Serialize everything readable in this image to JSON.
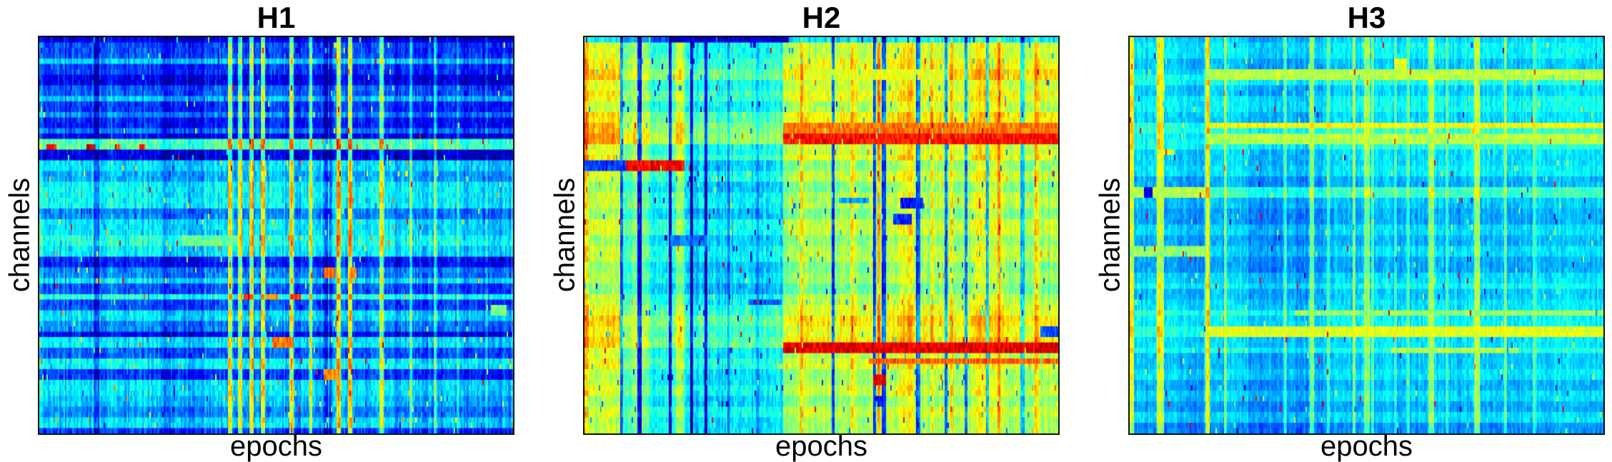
{
  "figure": {
    "background": "#ffffff",
    "axis_box_color": "#111111",
    "text_color": "#000000"
  },
  "chart_data": [
    {
      "type": "heatmap",
      "title": "H1",
      "xlabel": "epochs",
      "ylabel": "channels",
      "colormap": "jet",
      "value_range": [
        0,
        1
      ],
      "apparent_rows": 74,
      "apparent_cols": 331,
      "base": 0.24,
      "row_bands": [
        [
          0.0,
          0.02,
          0.1
        ],
        [
          0.02,
          0.048,
          0.2
        ],
        [
          0.048,
          0.062,
          0.33
        ],
        [
          0.062,
          0.092,
          0.18
        ],
        [
          0.092,
          0.118,
          0.11
        ],
        [
          0.118,
          0.148,
          0.22
        ],
        [
          0.148,
          0.168,
          0.32
        ],
        [
          0.168,
          0.185,
          0.18
        ],
        [
          0.185,
          0.205,
          0.26
        ],
        [
          0.205,
          0.228,
          0.15
        ],
        [
          0.228,
          0.248,
          0.24
        ],
        [
          0.248,
          0.263,
          0.12
        ],
        [
          0.263,
          0.288,
          0.46
        ],
        [
          0.288,
          0.308,
          0.1
        ],
        [
          0.308,
          0.335,
          0.35
        ],
        [
          0.335,
          0.362,
          0.3
        ],
        [
          0.362,
          0.43,
          0.38
        ],
        [
          0.43,
          0.458,
          0.26
        ],
        [
          0.458,
          0.5,
          0.36
        ],
        [
          0.5,
          0.522,
          0.41
        ],
        [
          0.522,
          0.556,
          0.36
        ],
        [
          0.556,
          0.582,
          0.15
        ],
        [
          0.582,
          0.602,
          0.26
        ],
        [
          0.602,
          0.618,
          0.36
        ],
        [
          0.618,
          0.642,
          0.21
        ],
        [
          0.642,
          0.665,
          0.41
        ],
        [
          0.665,
          0.69,
          0.2
        ],
        [
          0.69,
          0.716,
          0.35
        ],
        [
          0.716,
          0.742,
          0.26
        ],
        [
          0.742,
          0.762,
          0.12
        ],
        [
          0.762,
          0.788,
          0.36
        ],
        [
          0.788,
          0.812,
          0.22
        ],
        [
          0.812,
          0.836,
          0.38
        ],
        [
          0.836,
          0.86,
          0.18
        ],
        [
          0.86,
          0.9,
          0.36
        ],
        [
          0.9,
          0.932,
          0.32
        ],
        [
          0.932,
          0.962,
          0.26
        ],
        [
          0.962,
          0.982,
          0.35
        ],
        [
          0.982,
          1.0,
          0.18
        ]
      ],
      "col_stripes": [
        [
          0.0,
          0.008,
          0.05
        ],
        [
          0.115,
          0.127,
          -0.12
        ],
        [
          0.15,
          0.158,
          0.05
        ],
        [
          0.26,
          0.276,
          -0.09
        ],
        [
          0.28,
          0.345,
          -0.03
        ],
        [
          0.398,
          0.406,
          0.33
        ],
        [
          0.42,
          0.428,
          0.28
        ],
        [
          0.443,
          0.451,
          0.34
        ],
        [
          0.468,
          0.475,
          0.3
        ],
        [
          0.52,
          0.56,
          -0.04
        ],
        [
          0.528,
          0.535,
          0.37
        ],
        [
          0.568,
          0.575,
          0.32
        ],
        [
          0.598,
          0.607,
          -0.16
        ],
        [
          0.61,
          0.618,
          -0.14
        ],
        [
          0.628,
          0.636,
          0.37
        ],
        [
          0.652,
          0.659,
          0.33
        ],
        [
          0.718,
          0.725,
          0.31
        ],
        [
          0.745,
          0.995,
          -0.04
        ],
        [
          0.78,
          0.787,
          0.22
        ],
        [
          0.83,
          0.837,
          0.18
        ],
        [
          0.88,
          0.887,
          0.15
        ],
        [
          0.94,
          0.947,
          0.12
        ]
      ],
      "streaks": [
        [
          0.266,
          0.288,
          0.015,
          0.035,
          0.85
        ],
        [
          0.266,
          0.288,
          0.1,
          0.118,
          0.9
        ],
        [
          0.266,
          0.288,
          0.16,
          0.172,
          0.78
        ],
        [
          0.266,
          0.288,
          0.21,
          0.222,
          0.86
        ],
        [
          0.5,
          0.522,
          0.3,
          0.42,
          0.47
        ],
        [
          0.586,
          0.608,
          0.6,
          0.622,
          0.76
        ],
        [
          0.586,
          0.608,
          0.655,
          0.67,
          0.72
        ],
        [
          0.644,
          0.665,
          0.43,
          0.452,
          0.78
        ],
        [
          0.644,
          0.665,
          0.48,
          0.5,
          0.72
        ],
        [
          0.644,
          0.665,
          0.53,
          0.55,
          0.8
        ],
        [
          0.68,
          0.7,
          0.952,
          0.985,
          0.5
        ],
        [
          0.755,
          0.785,
          0.49,
          0.535,
          0.76
        ],
        [
          0.84,
          0.87,
          0.6,
          0.632,
          0.74
        ]
      ],
      "texture": {
        "col_jitter": 0.1,
        "cell_jitter": 0.11,
        "dark_rate": 0.004,
        "dark_delta": -0.14,
        "hot_rate": 0.007,
        "hot_delta": 0.34,
        "red_rate": 0.0012,
        "streak_jitter": 0.12
      }
    },
    {
      "type": "heatmap",
      "title": "H2",
      "xlabel": "epochs",
      "ylabel": "channels",
      "colormap": "jet",
      "value_range": [
        0,
        1
      ],
      "apparent_rows": 74,
      "apparent_cols": 331,
      "base": 0.42,
      "row_bands": [
        [
          0.0,
          0.016,
          0.22
        ],
        [
          0.016,
          0.06,
          0.44
        ],
        [
          0.06,
          0.085,
          0.48
        ],
        [
          0.085,
          0.105,
          0.53
        ],
        [
          0.105,
          0.132,
          0.44
        ],
        [
          0.132,
          0.162,
          0.48
        ],
        [
          0.162,
          0.192,
          0.42
        ],
        [
          0.192,
          0.215,
          0.5
        ],
        [
          0.215,
          0.24,
          0.55
        ],
        [
          0.24,
          0.265,
          0.58
        ],
        [
          0.265,
          0.292,
          0.44
        ],
        [
          0.292,
          0.315,
          0.48
        ],
        [
          0.315,
          0.34,
          0.38
        ],
        [
          0.34,
          0.368,
          0.44
        ],
        [
          0.368,
          0.395,
          0.37
        ],
        [
          0.395,
          0.432,
          0.42
        ],
        [
          0.432,
          0.465,
          0.37
        ],
        [
          0.465,
          0.498,
          0.44
        ],
        [
          0.498,
          0.532,
          0.38
        ],
        [
          0.532,
          0.562,
          0.42
        ],
        [
          0.562,
          0.592,
          0.37
        ],
        [
          0.592,
          0.622,
          0.4
        ],
        [
          0.622,
          0.652,
          0.35
        ],
        [
          0.652,
          0.682,
          0.42
        ],
        [
          0.682,
          0.706,
          0.46
        ],
        [
          0.706,
          0.732,
          0.52
        ],
        [
          0.732,
          0.756,
          0.48
        ],
        [
          0.756,
          0.78,
          0.52
        ],
        [
          0.78,
          0.812,
          0.42
        ],
        [
          0.812,
          0.842,
          0.46
        ],
        [
          0.842,
          0.872,
          0.4
        ],
        [
          0.872,
          0.902,
          0.44
        ],
        [
          0.902,
          0.932,
          0.38
        ],
        [
          0.932,
          0.966,
          0.44
        ],
        [
          0.966,
          1.0,
          0.4
        ]
      ],
      "col_stripes": [
        [
          0.0,
          0.01,
          0.26
        ],
        [
          0.01,
          0.08,
          0.16
        ],
        [
          0.08,
          0.14,
          0.06
        ],
        [
          0.074,
          0.08,
          -0.34
        ],
        [
          0.112,
          0.119,
          -0.34
        ],
        [
          0.14,
          0.23,
          -0.02
        ],
        [
          0.178,
          0.184,
          -0.32
        ],
        [
          0.192,
          0.212,
          0.12
        ],
        [
          0.223,
          0.23,
          -0.34
        ],
        [
          0.253,
          0.26,
          -0.3
        ],
        [
          0.23,
          0.418,
          -0.06
        ],
        [
          0.3,
          0.306,
          -0.1
        ],
        [
          0.36,
          0.366,
          -0.08
        ],
        [
          0.418,
          1.0,
          0.13
        ],
        [
          0.455,
          0.462,
          0.12
        ],
        [
          0.52,
          0.527,
          -0.38
        ],
        [
          0.56,
          0.567,
          0.12
        ],
        [
          0.608,
          0.615,
          -0.36
        ],
        [
          0.616,
          0.623,
          0.14
        ],
        [
          0.628,
          0.635,
          -0.36
        ],
        [
          0.66,
          0.695,
          0.08
        ],
        [
          0.7,
          0.708,
          -0.34
        ],
        [
          0.728,
          0.735,
          0.12
        ],
        [
          0.758,
          0.764,
          -0.32
        ],
        [
          0.77,
          0.777,
          0.1
        ],
        [
          0.8,
          0.807,
          -0.28
        ],
        [
          0.825,
          0.885,
          0.06
        ],
        [
          0.845,
          0.852,
          -0.28
        ],
        [
          0.87,
          0.877,
          0.1
        ],
        [
          0.92,
          0.927,
          -0.26
        ],
        [
          0.95,
          0.957,
          0.1
        ]
      ],
      "streaks": [
        [
          0.0,
          0.016,
          0.18,
          0.43,
          0.08
        ],
        [
          0.085,
          0.105,
          0.46,
          0.76,
          0.6
        ],
        [
          0.212,
          0.238,
          0.418,
          1.0,
          0.76
        ],
        [
          0.248,
          0.275,
          0.418,
          1.0,
          0.86
        ],
        [
          0.315,
          0.337,
          0.088,
          0.21,
          0.88
        ],
        [
          0.315,
          0.337,
          0.0,
          0.088,
          0.18
        ],
        [
          0.4,
          0.415,
          0.535,
          0.6,
          0.28
        ],
        [
          0.408,
          0.432,
          0.665,
          0.715,
          0.15
        ],
        [
          0.452,
          0.47,
          0.65,
          0.69,
          0.16
        ],
        [
          0.495,
          0.525,
          0.18,
          0.26,
          0.24
        ],
        [
          0.66,
          0.68,
          0.345,
          0.415,
          0.2
        ],
        [
          0.73,
          0.755,
          0.96,
          1.0,
          0.2
        ],
        [
          0.765,
          0.792,
          0.418,
          1.0,
          0.9
        ],
        [
          0.805,
          0.828,
          0.6,
          1.0,
          0.78
        ],
        [
          0.855,
          0.878,
          0.608,
          0.636,
          0.9
        ],
        [
          0.905,
          0.93,
          0.608,
          0.63,
          0.14
        ]
      ],
      "texture": {
        "col_jitter": 0.09,
        "cell_jitter": 0.1,
        "dark_rate": 0.012,
        "dark_delta": -0.3,
        "hot_rate": 0.005,
        "hot_delta": 0.2,
        "red_rate": 0.001,
        "streak_jitter": 0.12
      }
    },
    {
      "type": "heatmap",
      "title": "H3",
      "xlabel": "epochs",
      "ylabel": "channels",
      "colormap": "jet",
      "value_range": [
        0,
        1
      ],
      "apparent_rows": 74,
      "apparent_cols": 331,
      "base": 0.34,
      "row_bands": [
        [
          0.0,
          0.02,
          0.34
        ],
        [
          0.02,
          0.052,
          0.37
        ],
        [
          0.052,
          0.078,
          0.32
        ],
        [
          0.078,
          0.095,
          0.35
        ],
        [
          0.095,
          0.115,
          0.4
        ],
        [
          0.115,
          0.152,
          0.33
        ],
        [
          0.152,
          0.188,
          0.38
        ],
        [
          0.188,
          0.218,
          0.34
        ],
        [
          0.218,
          0.242,
          0.42
        ],
        [
          0.242,
          0.263,
          0.37
        ],
        [
          0.263,
          0.285,
          0.4
        ],
        [
          0.285,
          0.322,
          0.34
        ],
        [
          0.322,
          0.348,
          0.36
        ],
        [
          0.348,
          0.382,
          0.3
        ],
        [
          0.382,
          0.408,
          0.43
        ],
        [
          0.408,
          0.432,
          0.32
        ],
        [
          0.432,
          0.468,
          0.29
        ],
        [
          0.468,
          0.498,
          0.34
        ],
        [
          0.498,
          0.528,
          0.3
        ],
        [
          0.528,
          0.558,
          0.34
        ],
        [
          0.558,
          0.588,
          0.29
        ],
        [
          0.588,
          0.618,
          0.34
        ],
        [
          0.618,
          0.638,
          0.38
        ],
        [
          0.638,
          0.662,
          0.32
        ],
        [
          0.662,
          0.686,
          0.35
        ],
        [
          0.686,
          0.708,
          0.42
        ],
        [
          0.708,
          0.728,
          0.37
        ],
        [
          0.728,
          0.752,
          0.42
        ],
        [
          0.752,
          0.778,
          0.35
        ],
        [
          0.778,
          0.802,
          0.4
        ],
        [
          0.802,
          0.832,
          0.32
        ],
        [
          0.832,
          0.862,
          0.35
        ],
        [
          0.862,
          0.892,
          0.3
        ],
        [
          0.892,
          0.922,
          0.34
        ],
        [
          0.922,
          0.952,
          0.29
        ],
        [
          0.952,
          0.976,
          0.34
        ],
        [
          0.976,
          1.0,
          0.26
        ]
      ],
      "col_stripes": [
        [
          0.0,
          0.008,
          0.3
        ],
        [
          0.058,
          0.072,
          0.26
        ],
        [
          0.1,
          0.158,
          -0.02
        ],
        [
          0.16,
          0.17,
          0.3
        ],
        [
          0.198,
          0.204,
          0.16
        ],
        [
          0.25,
          0.42,
          -0.04
        ],
        [
          0.325,
          0.331,
          0.14
        ],
        [
          0.38,
          0.388,
          0.18
        ],
        [
          0.415,
          0.421,
          0.12
        ],
        [
          0.47,
          0.476,
          0.2
        ],
        [
          0.495,
          0.505,
          0.18
        ],
        [
          0.51,
          0.516,
          0.14
        ],
        [
          0.556,
          0.562,
          0.12
        ],
        [
          0.584,
          0.59,
          0.1
        ],
        [
          0.63,
          0.643,
          0.2
        ],
        [
          0.665,
          0.671,
          0.12
        ],
        [
          0.726,
          0.737,
          0.22
        ],
        [
          0.788,
          0.795,
          0.14
        ],
        [
          0.85,
          0.858,
          0.1
        ],
        [
          0.905,
          0.955,
          0.02
        ]
      ],
      "streaks": [
        [
          0.054,
          0.076,
          0.558,
          0.585,
          0.6
        ],
        [
          0.086,
          0.108,
          0.16,
          1.0,
          0.56
        ],
        [
          0.21,
          0.236,
          0.16,
          1.0,
          0.62
        ],
        [
          0.245,
          0.268,
          0.16,
          1.0,
          0.55
        ],
        [
          0.28,
          0.302,
          0.058,
          0.092,
          0.6
        ],
        [
          0.382,
          0.41,
          0.0,
          0.16,
          0.56
        ],
        [
          0.385,
          0.405,
          0.03,
          0.048,
          0.1
        ],
        [
          0.528,
          0.552,
          0.0,
          0.16,
          0.52
        ],
        [
          0.686,
          0.708,
          0.35,
          1.0,
          0.52
        ],
        [
          0.728,
          0.752,
          0.16,
          1.0,
          0.6
        ],
        [
          0.778,
          0.802,
          0.55,
          0.82,
          0.55
        ]
      ],
      "texture": {
        "col_jitter": 0.07,
        "cell_jitter": 0.08,
        "dark_rate": 0.003,
        "dark_delta": -0.24,
        "hot_rate": 0.005,
        "hot_delta": 0.24,
        "red_rate": 0.0015,
        "streak_jitter": 0.1
      }
    }
  ]
}
